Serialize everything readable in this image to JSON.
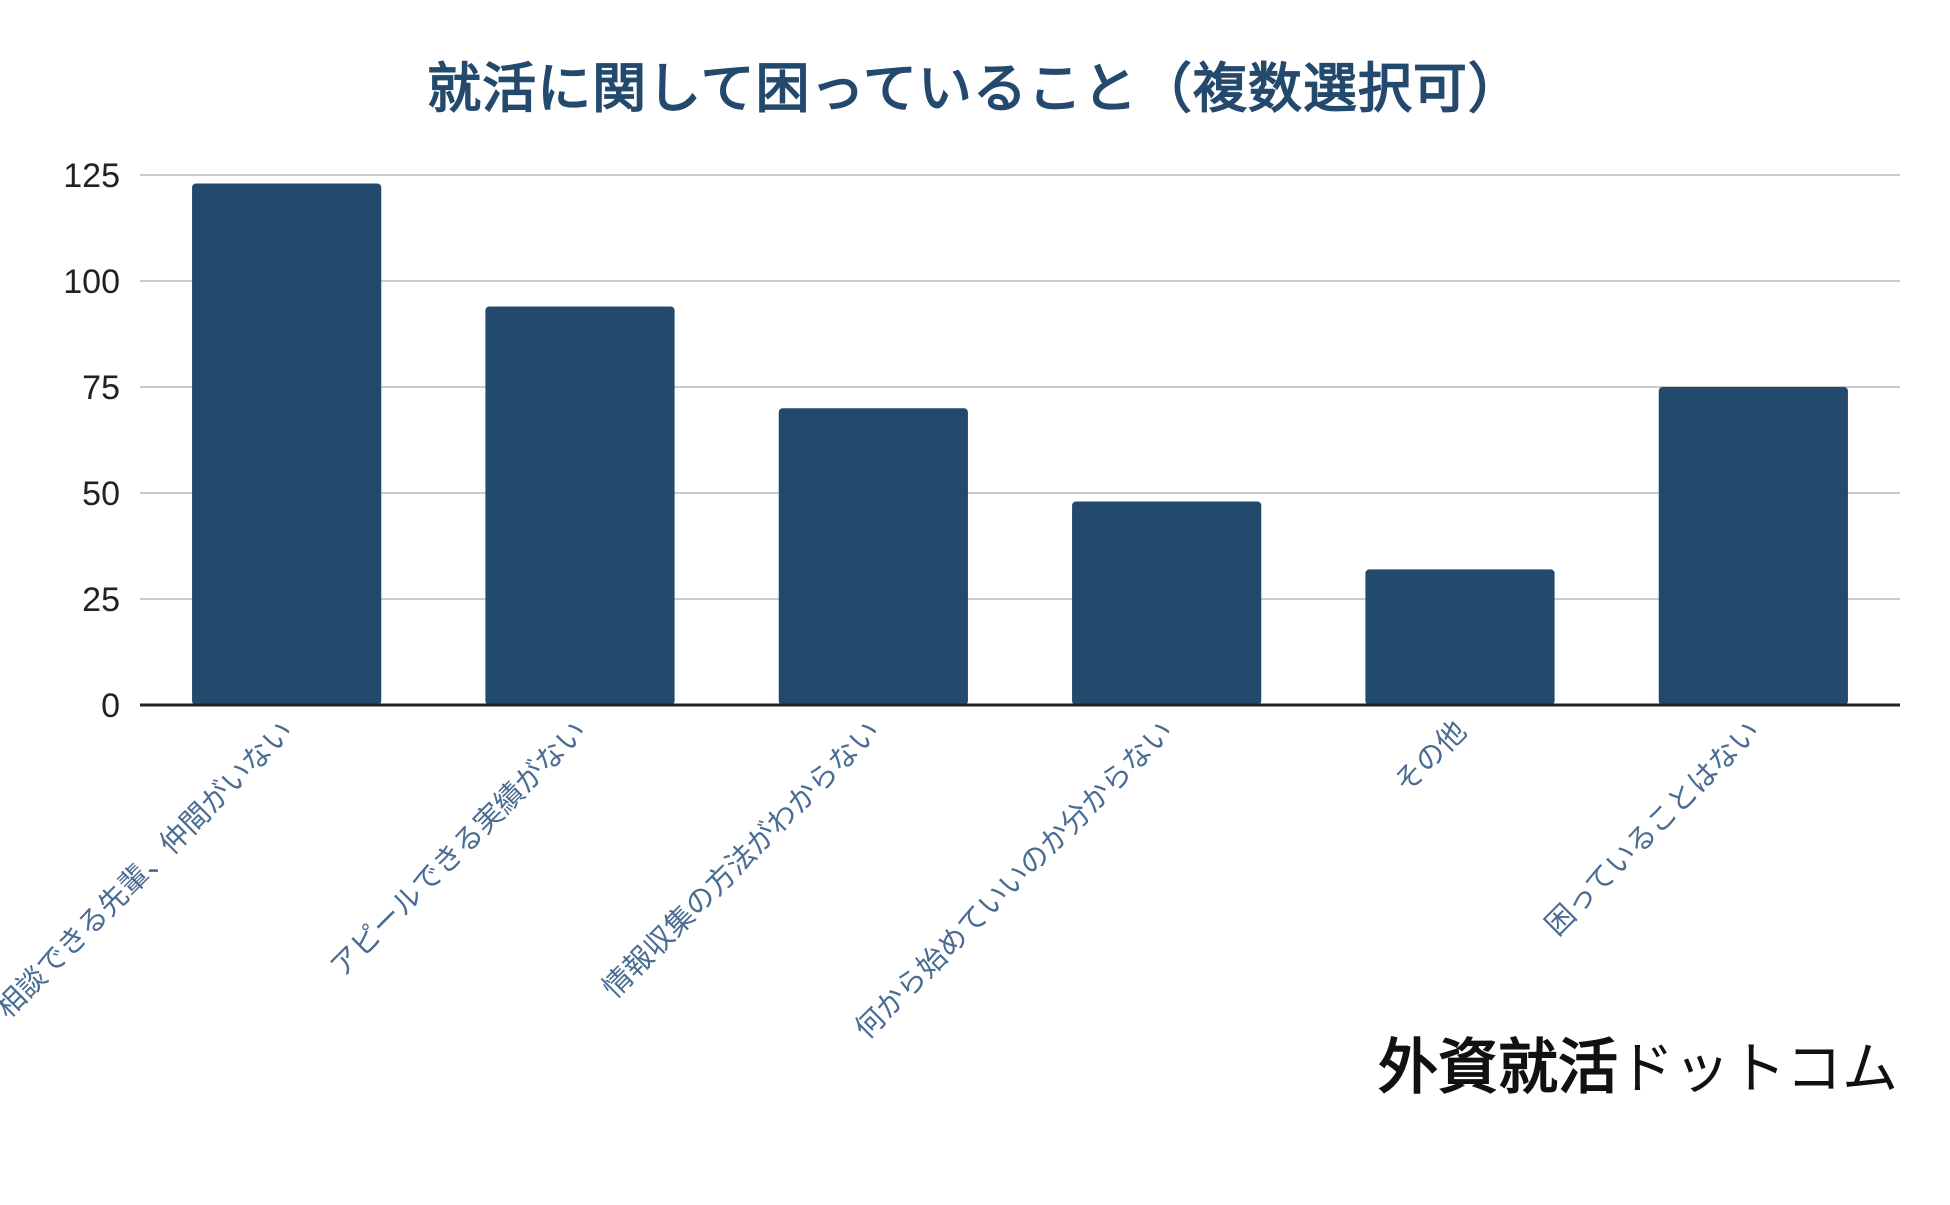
{
  "chart_data": {
    "type": "bar",
    "title": "就活に関して困っていること（複数選択可）",
    "categories": [
      "相談できる先輩、仲間がいない",
      "アピールできる実績がない",
      "情報収集の方法がわからない",
      "何から始めていいのか分からない",
      "その他",
      "困っていることはない"
    ],
    "series": [
      {
        "values": [
          123,
          94,
          70,
          48,
          32,
          75
        ]
      }
    ],
    "ylim": [
      0,
      125
    ],
    "yticks": [
      0,
      25,
      50,
      75,
      100,
      125
    ],
    "xlabel": "",
    "ylabel": "",
    "grid": true,
    "legend": "none",
    "colors": {
      "bar": "#23496d",
      "title": "#23496d",
      "x_tick_label": "#4a6c93",
      "grid": "#cccccc",
      "axis": "#222222"
    }
  },
  "logo": {
    "kanji": "外資就活",
    "kana": "ドットコム"
  }
}
